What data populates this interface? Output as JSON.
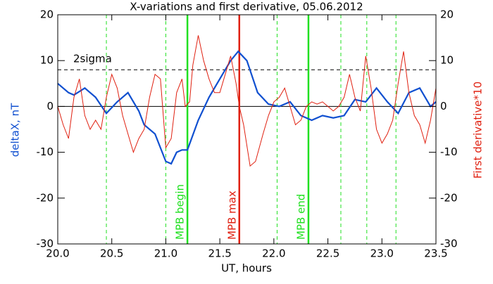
{
  "chart_data": {
    "type": "line",
    "title": "X-variations and first derivative, 05.06.2012",
    "xlabel": "UT, hours",
    "ylabel": "deltaX, nT",
    "y2label": "First derivative*10",
    "xlim": [
      20.0,
      23.5
    ],
    "xticks": [
      {
        "value": 20,
        "label": "20.0"
      },
      {
        "value": 20.5,
        "label": "20.5"
      },
      {
        "value": 21,
        "label": "21.0"
      },
      {
        "value": 21.5,
        "label": "21.5"
      },
      {
        "value": 22,
        "label": "22.0"
      },
      {
        "value": 22.5,
        "label": "22.5"
      },
      {
        "value": 23,
        "label": "23.0"
      },
      {
        "value": 23.5,
        "label": "23.5"
      }
    ],
    "ylim": [
      -30,
      20
    ],
    "yticks": [
      -30,
      -20,
      -10,
      0,
      10,
      20
    ],
    "y2lim": [
      -30,
      20
    ],
    "y2ticks": [
      -30,
      -20,
      -10,
      0,
      10,
      20
    ],
    "ylabel_color": "#1050d0",
    "y2label_color": "#e02010",
    "series": [
      {
        "color": "#1050d0",
        "axis": "y",
        "width": 2.2,
        "x": [
          20.0,
          20.1,
          20.15,
          20.25,
          20.35,
          20.45,
          20.55,
          20.65,
          20.75,
          20.8,
          20.9,
          21.0,
          21.05,
          21.1,
          21.15,
          21.2,
          21.3,
          21.4,
          21.5,
          21.6,
          21.67,
          21.75,
          21.85,
          21.95,
          22.05,
          22.15,
          22.25,
          22.35,
          22.45,
          22.55,
          22.65,
          22.75,
          22.85,
          22.95,
          23.05,
          23.15,
          23.25,
          23.35,
          23.45,
          23.5
        ],
        "values": [
          5,
          3,
          2.5,
          4,
          2,
          -1.5,
          1,
          3,
          -1,
          -4,
          -6,
          -12,
          -12.5,
          -10,
          -9.5,
          -9.5,
          -3,
          2,
          6,
          10,
          12,
          10,
          3,
          0.5,
          0,
          1,
          -2,
          -3,
          -2,
          -2.5,
          -2,
          1.5,
          1,
          4,
          1,
          -1.5,
          3,
          4,
          0,
          1
        ]
      },
      {
        "color": "#e02010",
        "axis": "y2",
        "width": 1,
        "x": [
          20.0,
          20.05,
          20.1,
          20.15,
          20.2,
          20.25,
          20.3,
          20.35,
          20.4,
          20.45,
          20.5,
          20.55,
          20.6,
          20.65,
          20.7,
          20.75,
          20.8,
          20.85,
          20.9,
          20.95,
          21.0,
          21.05,
          21.1,
          21.15,
          21.18,
          21.22,
          21.25,
          21.3,
          21.35,
          21.4,
          21.45,
          21.5,
          21.55,
          21.6,
          21.65,
          21.68,
          21.72,
          21.78,
          21.83,
          21.9,
          21.95,
          22.0,
          22.05,
          22.1,
          22.15,
          22.2,
          22.25,
          22.3,
          22.35,
          22.4,
          22.45,
          22.5,
          22.55,
          22.6,
          22.65,
          22.7,
          22.75,
          22.8,
          22.85,
          22.9,
          22.95,
          23.0,
          23.05,
          23.1,
          23.15,
          23.2,
          23.25,
          23.3,
          23.35,
          23.4,
          23.45,
          23.5
        ],
        "values": [
          0,
          -4,
          -7,
          2,
          6,
          -2,
          -5,
          -3,
          -5,
          2,
          7,
          4,
          -2,
          -6,
          -10,
          -7,
          -5,
          2,
          7,
          6,
          -9,
          -7,
          3,
          6,
          0,
          1,
          9,
          15.5,
          10,
          6,
          3,
          3,
          7,
          11,
          5,
          0,
          -4,
          -13,
          -12,
          -6,
          -2,
          1,
          2,
          4,
          0,
          -4,
          -3,
          0,
          1,
          0.5,
          1,
          0,
          -1,
          0,
          2,
          7,
          2,
          -1,
          11,
          4,
          -5,
          -8,
          -6,
          -3,
          5,
          12,
          3,
          -2,
          -4,
          -8,
          -3,
          4
        ]
      }
    ],
    "vlines": [
      {
        "x": 20.45,
        "color": "#20e020",
        "style": "dashed"
      },
      {
        "x": 21.0,
        "color": "#20e020",
        "style": "dashed"
      },
      {
        "x": 21.2,
        "color": "#20e020",
        "style": "solid",
        "label": "MPB begin"
      },
      {
        "x": 21.68,
        "color": "#e02010",
        "style": "solid",
        "label": "MPB max"
      },
      {
        "x": 22.03,
        "color": "#20e020",
        "style": "dashed"
      },
      {
        "x": 22.32,
        "color": "#20e020",
        "style": "solid",
        "label": "MPB end"
      },
      {
        "x": 22.62,
        "color": "#20e020",
        "style": "dashed"
      },
      {
        "x": 22.86,
        "color": "#20e020",
        "style": "dashed"
      },
      {
        "x": 23.13,
        "color": "#20e020",
        "style": "dashed"
      }
    ],
    "hlines": [
      {
        "y": 8,
        "color": "#000000",
        "style": "dashed",
        "label": "2sigma"
      },
      {
        "y": 0,
        "color": "#000000",
        "style": "solid"
      }
    ]
  }
}
